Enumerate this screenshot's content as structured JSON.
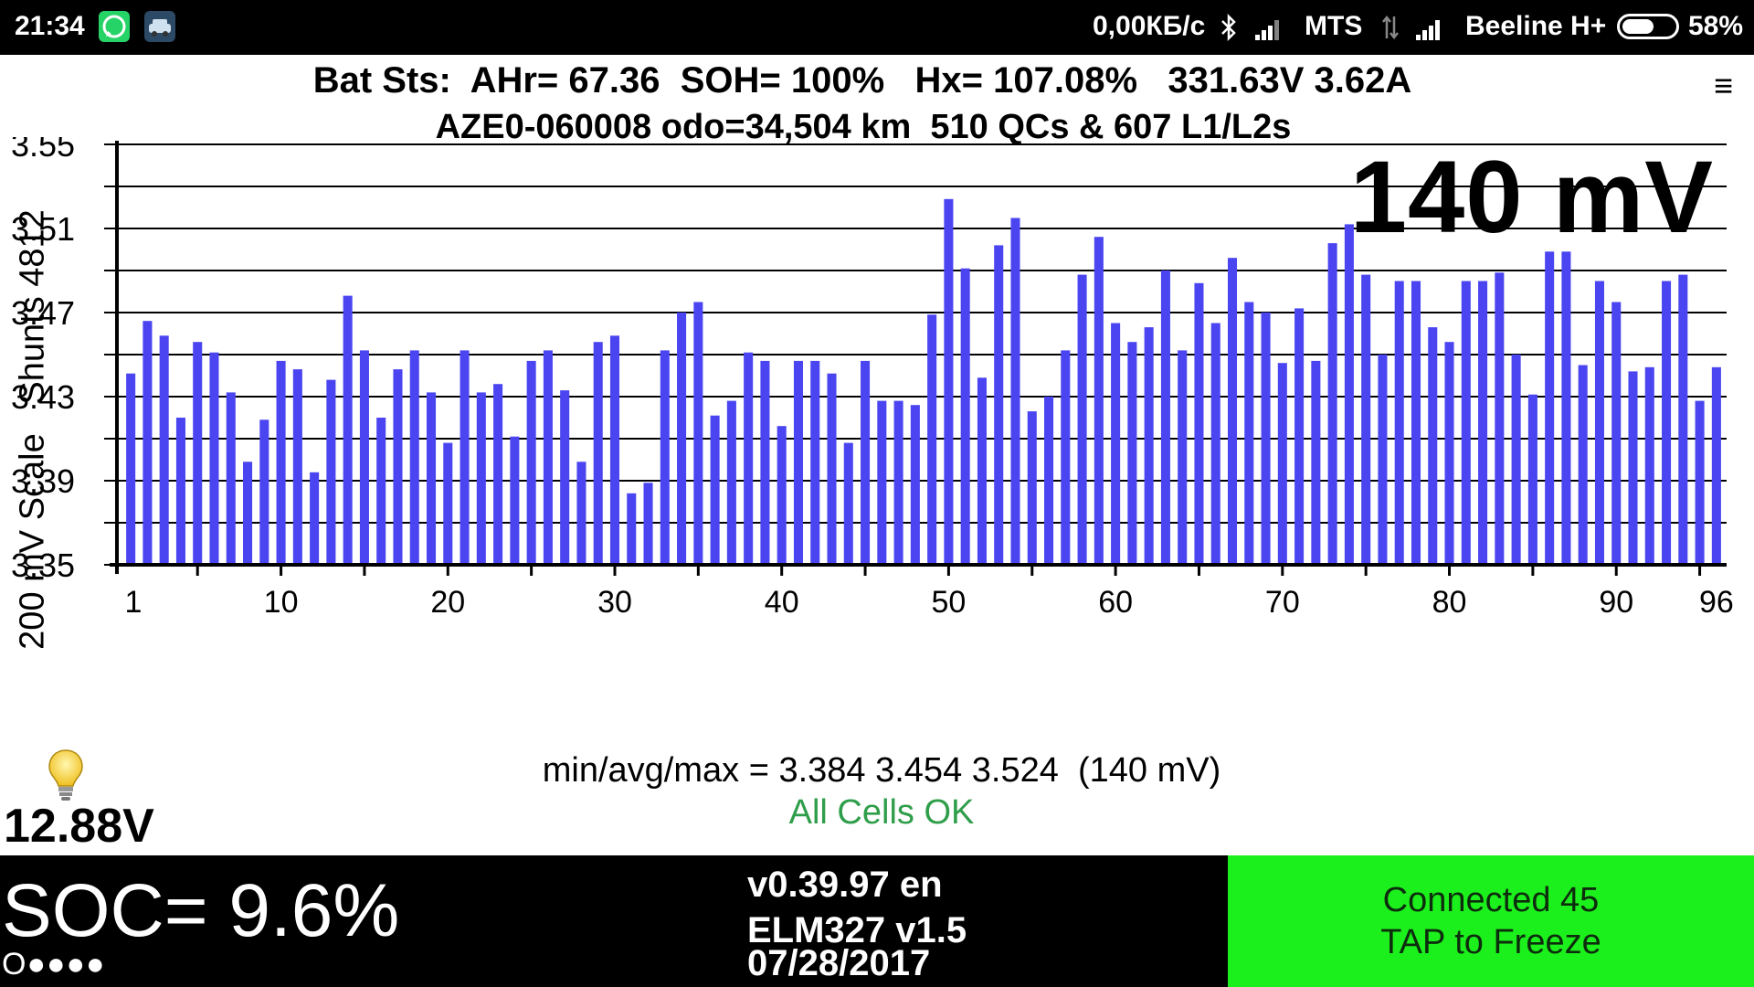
{
  "statusbar": {
    "time": "21:34",
    "net_speed": "0,00КБ/с",
    "carrier1": "MTS",
    "carrier2": "Beeline H+",
    "battery": "58%",
    "battery_level": 0.58,
    "icons": [
      "whatsapp-icon",
      "car-app-icon",
      "bluetooth-icon",
      "signal-icon",
      "data-arrows-icon",
      "signal-icon",
      "battery-icon"
    ]
  },
  "header": {
    "line1": "Bat Sts:  AHr= 67.36  SOH= 100%   Hx= 107.08%   331.63V 3.62A",
    "line2": "AZE0-060008 odo=34,504 km  510 QCs & 607 L1/L2s",
    "menu_icon": "≡"
  },
  "delta_mv": "140 mV",
  "y_axis_title": "200 mV Scale   Shunts 4812",
  "summary": {
    "minavgmax": "min/avg/max = 3.384 3.454 3.524  (140 mV)",
    "status": "All Cells OK",
    "status_color": "#2f9e4a"
  },
  "twelve_volt": "12.88V",
  "soc": {
    "label": "SOC= 9.6%",
    "dots": "O●●●●"
  },
  "version": {
    "app": "v0.39.97 en",
    "adapter": "ELM327 v1.5",
    "date": "07/28/2017"
  },
  "connect": {
    "line1": "Connected 45",
    "line2": "TAP to Freeze",
    "bg_color": "#1cf01c"
  },
  "chart_data": {
    "type": "bar",
    "bar_color": "#4a45f0",
    "ylim": [
      3.35,
      3.55
    ],
    "yticks": [
      "3.55",
      "3.51",
      "3.47",
      "3.43",
      "3.39",
      "3.35"
    ],
    "xticks": [
      "1",
      "10",
      "20",
      "30",
      "40",
      "50",
      "60",
      "70",
      "80",
      "90",
      "96"
    ],
    "x_range": [
      1,
      96.5
    ],
    "grid": true,
    "values": [
      3.441,
      3.466,
      3.459,
      3.42,
      3.456,
      3.451,
      3.432,
      3.399,
      3.419,
      3.447,
      3.443,
      3.394,
      3.438,
      3.478,
      3.452,
      3.42,
      3.443,
      3.452,
      3.432,
      3.408,
      3.452,
      3.432,
      3.436,
      3.411,
      3.447,
      3.452,
      3.433,
      3.399,
      3.456,
      3.459,
      3.384,
      3.389,
      3.452,
      3.47,
      3.475,
      3.421,
      3.428,
      3.451,
      3.447,
      3.416,
      3.447,
      3.447,
      3.441,
      3.408,
      3.447,
      3.428,
      3.428,
      3.426,
      3.469,
      3.524,
      3.491,
      3.439,
      3.502,
      3.515,
      3.423,
      3.43,
      3.452,
      3.488,
      3.506,
      3.465,
      3.456,
      3.463,
      3.49,
      3.452,
      3.484,
      3.465,
      3.496,
      3.475,
      3.47,
      3.446,
      3.472,
      3.447,
      3.503,
      3.512,
      3.488,
      3.45,
      3.485,
      3.485,
      3.463,
      3.456,
      3.485,
      3.485,
      3.489,
      3.45,
      3.431,
      3.499,
      3.499,
      3.445,
      3.485,
      3.475,
      3.442,
      3.444,
      3.485,
      3.488,
      3.428,
      3.444
    ]
  }
}
